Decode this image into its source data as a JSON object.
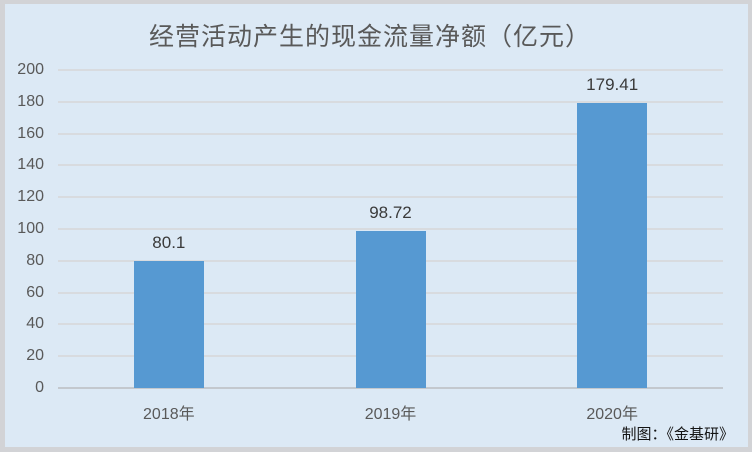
{
  "chart_data": {
    "type": "bar",
    "title": "经营活动产生的现金流量净额（亿元）",
    "categories": [
      "2018年",
      "2019年",
      "2020年"
    ],
    "values": [
      80.1,
      98.72,
      179.41
    ],
    "value_labels": [
      "80.1",
      "98.72",
      "179.41"
    ],
    "xlabel": "",
    "ylabel": "",
    "ylim": [
      0,
      200
    ],
    "yticks": [
      0,
      20,
      40,
      60,
      80,
      100,
      120,
      140,
      160,
      180,
      200
    ],
    "grid": true,
    "legend": "none",
    "bar_color": "#5699d2",
    "background_color": "#dce9f5",
    "frame_color": "#d2d3d6",
    "gridline_color": "#d8dbdf",
    "title_color": "#595959",
    "tick_color": "#595959",
    "data_label_color": "#3a3a3a"
  },
  "footer": {
    "credit": "制图：《金基研》"
  }
}
